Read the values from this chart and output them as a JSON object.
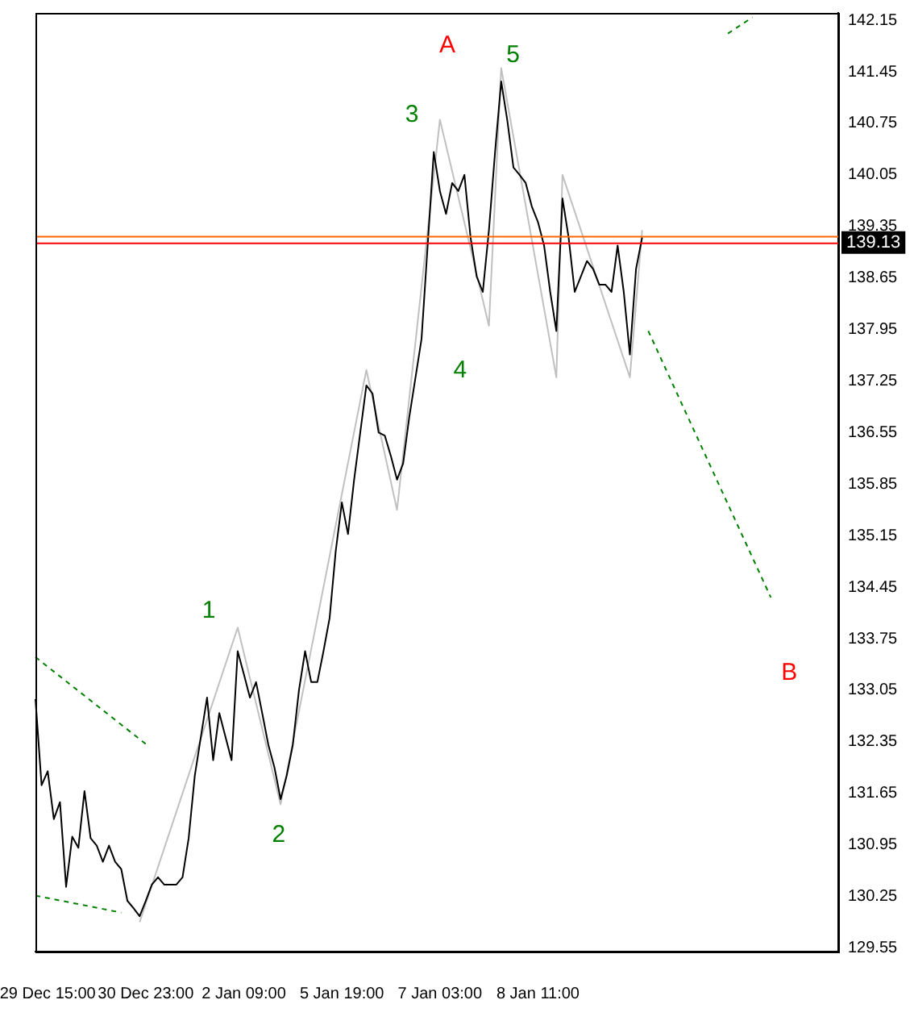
{
  "chart_data": {
    "type": "line",
    "categories": [
      null,
      null,
      "29 Dec 15:00",
      null,
      null,
      null,
      null,
      null,
      null,
      null,
      null,
      null,
      null,
      null,
      null,
      null,
      null,
      null,
      "30 Dec 23:00",
      null,
      null,
      null,
      null,
      null,
      null,
      null,
      null,
      null,
      null,
      null,
      null,
      null,
      null,
      null,
      "2 Jan 09:00",
      null,
      null,
      null,
      null,
      null,
      null,
      null,
      null,
      null,
      null,
      null,
      null,
      null,
      null,
      null,
      "5 Jan 19:00",
      null,
      null,
      null,
      null,
      null,
      null,
      null,
      null,
      null,
      null,
      null,
      null,
      null,
      null,
      null,
      "7 Jan 03:00",
      null,
      null,
      null,
      null,
      null,
      null,
      null,
      null,
      null,
      null,
      null,
      null,
      null,
      null,
      null,
      "8 Jan 11:00",
      null,
      null,
      null,
      null,
      null,
      null,
      null,
      null,
      null,
      null,
      null,
      null,
      null,
      null,
      null,
      null,
      null,
      null,
      null,
      null,
      null,
      null,
      null,
      null,
      null,
      null,
      null,
      null,
      null,
      null,
      null,
      null,
      null,
      null,
      null,
      null,
      null,
      null,
      null,
      null,
      null,
      null,
      null,
      null,
      null,
      null,
      null,
      null,
      null
    ],
    "series": [
      {
        "color": "#000000",
        "line_style": "solid",
        "values": [
          132.93,
          131.76,
          131.95,
          131.3,
          131.53,
          130.38,
          131.06,
          130.91,
          131.68,
          131.04,
          130.94,
          130.72,
          130.94,
          130.72,
          130.62,
          130.19,
          130.09,
          129.98,
          130.19,
          130.41,
          130.51,
          130.41,
          130.41,
          130.41,
          130.51,
          131.04,
          131.89,
          132.42,
          132.95,
          132.1,
          132.74,
          132.42,
          132.1,
          133.58,
          133.27,
          132.95,
          133.16,
          132.74,
          132.31,
          132.0,
          131.57,
          131.89,
          132.31,
          133.05,
          133.58,
          133.16,
          133.16,
          133.58,
          134.03,
          134.94,
          135.6,
          135.17,
          135.91,
          136.55,
          137.19,
          137.08,
          136.55,
          136.51,
          136.23,
          135.91,
          136.13,
          136.76,
          137.29,
          137.82,
          139.09,
          140.36,
          139.83,
          139.52,
          139.94,
          139.83,
          140.05,
          139.2,
          138.67,
          138.46,
          139.3,
          140.36,
          141.32,
          140.79,
          140.15,
          140.05,
          139.94,
          139.62,
          139.41,
          139.09,
          138.46,
          137.93,
          139.73,
          139.2,
          138.46,
          138.67,
          138.88,
          138.77,
          138.56,
          138.56,
          138.46,
          139.09,
          138.46,
          137.61,
          138.77,
          139.2,
          null,
          null,
          null,
          null,
          null,
          null,
          null,
          null,
          null,
          null,
          null,
          null,
          null,
          null,
          null,
          null,
          null,
          null,
          null,
          null,
          null,
          null,
          null,
          null,
          null,
          null,
          null,
          null,
          null,
          null,
          null,
          null
        ]
      },
      {
        "color": "#c0c0c0",
        "line_style": "solid",
        "values": [
          null,
          null,
          null,
          null,
          null,
          null,
          null,
          null,
          null,
          null,
          null,
          null,
          null,
          null,
          null,
          null,
          null,
          129.9,
          null,
          null,
          null,
          null,
          null,
          null,
          null,
          null,
          null,
          null,
          null,
          null,
          null,
          null,
          null,
          133.9,
          null,
          null,
          null,
          null,
          null,
          null,
          131.5,
          null,
          null,
          null,
          null,
          null,
          null,
          null,
          null,
          null,
          null,
          null,
          null,
          null,
          137.4,
          null,
          null,
          null,
          null,
          135.5,
          null,
          null,
          null,
          null,
          null,
          null,
          140.8,
          null,
          null,
          null,
          null,
          null,
          null,
          null,
          138.0,
          null,
          141.5,
          null,
          null,
          null,
          null,
          null,
          null,
          null,
          null,
          137.3,
          140.05,
          null,
          null,
          null,
          null,
          null,
          null,
          null,
          null,
          null,
          null,
          137.3,
          null,
          139.3,
          null,
          null,
          null,
          null,
          null,
          null,
          null,
          null,
          null,
          null,
          null,
          null,
          null,
          null,
          null,
          null,
          null,
          null,
          null,
          null,
          null,
          null,
          null,
          null,
          null,
          null,
          null,
          null,
          null,
          null,
          null,
          null
        ]
      },
      {
        "color": "#008000",
        "line_style": "dashed",
        "values": [
          133.5,
          null,
          null,
          null,
          null,
          null,
          null,
          null,
          null,
          null,
          null,
          null,
          null,
          null,
          null,
          null,
          null,
          null,
          132.32,
          null,
          null,
          null,
          null,
          null,
          null,
          null,
          null,
          null,
          null,
          null,
          null,
          null,
          null,
          null,
          null,
          null,
          null,
          null,
          null,
          null,
          null,
          null,
          null,
          null,
          null,
          null,
          null,
          null,
          null,
          null,
          null,
          null,
          null,
          null,
          null,
          null,
          null,
          null,
          null,
          null,
          null,
          null,
          null,
          null,
          null,
          null,
          null,
          null,
          null,
          null,
          null,
          null,
          null,
          null,
          null,
          null,
          null,
          null,
          null,
          null,
          null,
          null,
          null,
          null,
          null,
          null,
          null,
          null,
          null,
          null,
          null,
          null,
          null,
          null,
          null,
          null,
          null,
          null,
          null,
          null,
          null,
          null,
          null,
          null,
          null,
          null,
          null,
          null,
          null,
          null,
          null,
          null,
          null,
          null,
          null,
          null,
          null,
          null,
          null,
          null,
          null,
          null,
          null,
          null,
          null,
          null,
          null,
          null,
          null,
          null,
          null,
          null
        ]
      },
      {
        "color": "#008000",
        "line_style": "dashed",
        "values": [
          130.26,
          null,
          null,
          null,
          null,
          null,
          null,
          null,
          null,
          null,
          null,
          null,
          null,
          null,
          130.03,
          null,
          null,
          null,
          null,
          null,
          null,
          null,
          null,
          null,
          null,
          null,
          null,
          null,
          null,
          null,
          null,
          null,
          null,
          null,
          null,
          null,
          null,
          null,
          null,
          null,
          null,
          null,
          null,
          null,
          null,
          null,
          null,
          null,
          null,
          null,
          null,
          null,
          null,
          null,
          null,
          null,
          null,
          null,
          null,
          null,
          null,
          null,
          null,
          null,
          null,
          null,
          null,
          null,
          null,
          null,
          null,
          null,
          null,
          null,
          null,
          null,
          null,
          null,
          null,
          null,
          null,
          null,
          null,
          null,
          null,
          null,
          null,
          null,
          null,
          null,
          null,
          null,
          null,
          null,
          null,
          null,
          null,
          null,
          null,
          null,
          null,
          null,
          null,
          null,
          null,
          null,
          null,
          null,
          null,
          null,
          null,
          null,
          null,
          null,
          null,
          null,
          null,
          null,
          null,
          null,
          null,
          null,
          null,
          null,
          null,
          null,
          null,
          null,
          null,
          null,
          null,
          null
        ]
      },
      {
        "color": "#008000",
        "line_style": "dashed",
        "values": [
          null,
          null,
          null,
          null,
          null,
          null,
          null,
          null,
          null,
          null,
          null,
          null,
          null,
          null,
          null,
          null,
          null,
          null,
          null,
          null,
          null,
          null,
          null,
          null,
          null,
          null,
          null,
          null,
          null,
          null,
          null,
          null,
          null,
          null,
          null,
          null,
          null,
          null,
          null,
          null,
          null,
          null,
          null,
          null,
          null,
          null,
          null,
          null,
          null,
          null,
          null,
          null,
          null,
          null,
          null,
          null,
          null,
          null,
          null,
          null,
          null,
          null,
          null,
          null,
          null,
          null,
          null,
          null,
          null,
          null,
          null,
          null,
          null,
          null,
          null,
          null,
          null,
          null,
          null,
          null,
          null,
          null,
          null,
          null,
          null,
          null,
          null,
          null,
          null,
          null,
          null,
          null,
          null,
          null,
          null,
          null,
          null,
          null,
          null,
          null,
          137.93,
          null,
          null,
          null,
          null,
          null,
          null,
          null,
          null,
          null,
          null,
          null,
          null,
          null,
          null,
          null,
          null,
          null,
          null,
          null,
          134.31,
          null,
          null,
          null,
          null,
          null,
          null,
          null,
          null,
          null,
          null,
          null
        ]
      },
      {
        "color": "#008000",
        "line_style": "dashed",
        "values": [
          null,
          null,
          null,
          null,
          null,
          null,
          null,
          null,
          null,
          null,
          null,
          null,
          null,
          null,
          null,
          null,
          null,
          null,
          null,
          null,
          null,
          null,
          null,
          null,
          null,
          null,
          null,
          null,
          null,
          null,
          null,
          null,
          null,
          null,
          null,
          null,
          null,
          null,
          null,
          null,
          null,
          null,
          null,
          null,
          null,
          null,
          null,
          null,
          null,
          null,
          null,
          null,
          null,
          null,
          null,
          null,
          null,
          null,
          null,
          null,
          null,
          null,
          null,
          null,
          null,
          null,
          null,
          null,
          null,
          null,
          null,
          null,
          null,
          null,
          null,
          null,
          null,
          null,
          null,
          null,
          null,
          null,
          null,
          null,
          null,
          null,
          null,
          null,
          null,
          null,
          null,
          null,
          null,
          null,
          null,
          null,
          null,
          null,
          null,
          null,
          null,
          null,
          null,
          null,
          null,
          null,
          null,
          null,
          null,
          null,
          null,
          null,
          null,
          141.97,
          null,
          null,
          null,
          142.19,
          null,
          null,
          null,
          null,
          null,
          null,
          null,
          null,
          null,
          null,
          null,
          null,
          null,
          null
        ]
      }
    ],
    "ylim": [
      129.5,
      142.25
    ],
    "yticks": [
      129.55,
      130.25,
      130.95,
      131.65,
      132.35,
      133.05,
      133.75,
      134.45,
      135.15,
      135.85,
      136.55,
      137.25,
      137.95,
      138.65,
      139.35,
      140.05,
      140.75,
      141.45,
      142.15
    ],
    "ref_lines": [
      {
        "axis": "y",
        "value": 139.22,
        "color": "#ff6600"
      },
      {
        "axis": "y",
        "value": 139.13,
        "label": "139.13",
        "color": "#ff0000"
      }
    ],
    "annotations": [
      "A",
      "5",
      "3",
      "4",
      "1",
      "2",
      "B"
    ],
    "marker": "none",
    "grid": false,
    "legend": false
  }
}
